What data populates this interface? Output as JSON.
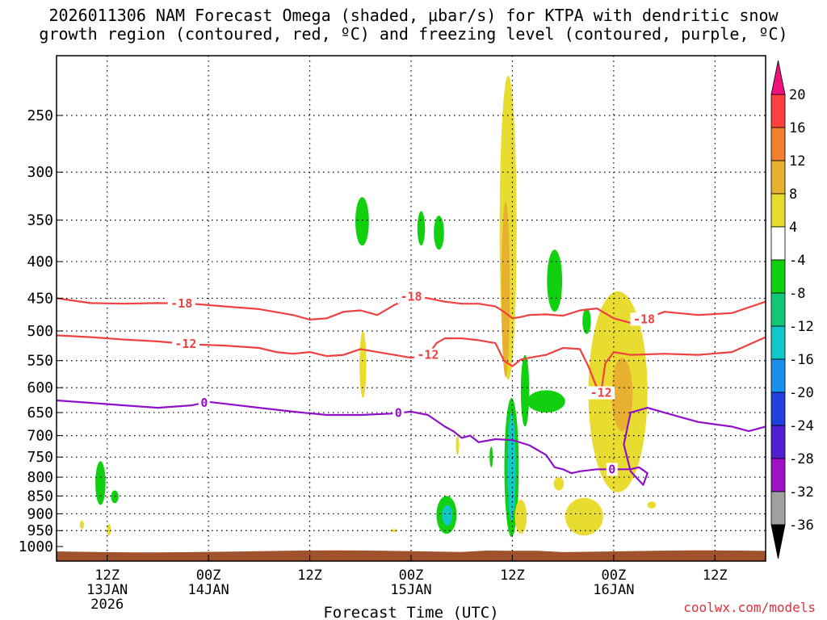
{
  "title": {
    "line1": "2026011306 NAM Forecast Omega (shaded, μbar/s) for KTPA with dendritic snow",
    "line2": "growth region (contoured, red, ºC) and freezing level (contoured, purple, ºC)"
  },
  "credit": "coolwx.com/models",
  "chart_data": {
    "type": "heatmap",
    "title": "2026011306 NAM Forecast Omega (shaded, μbar/s) for KTPA with dendritic snow growth region (contoured, red, ºC) and freezing level (contoured, purple, ºC)",
    "xlabel": "Forecast Time (UTC)",
    "ylabel": "",
    "x_unit": "forecast hour since 2026011306",
    "xlim": [
      0,
      84
    ],
    "ylim": [
      1000,
      200
    ],
    "y_ticks": [
      250,
      300,
      350,
      400,
      450,
      500,
      550,
      600,
      650,
      700,
      750,
      800,
      850,
      900,
      950,
      1000
    ],
    "x_ticks": [
      {
        "hour": 6,
        "label": "12Z",
        "sub1": "13JAN",
        "sub2": "2026"
      },
      {
        "hour": 18,
        "label": "00Z",
        "sub1": "14JAN",
        "sub2": ""
      },
      {
        "hour": 30,
        "label": "12Z",
        "sub1": "",
        "sub2": ""
      },
      {
        "hour": 42,
        "label": "00Z",
        "sub1": "15JAN",
        "sub2": ""
      },
      {
        "hour": 54,
        "label": "12Z",
        "sub1": "",
        "sub2": ""
      },
      {
        "hour": 66,
        "label": "00Z",
        "sub1": "16JAN",
        "sub2": ""
      },
      {
        "hour": 78,
        "label": "12Z",
        "sub1": "",
        "sub2": ""
      }
    ],
    "colorbar": {
      "labels": [
        "20",
        "16",
        "12",
        "8",
        "4",
        "-4",
        "-8",
        "-12",
        "-16",
        "-20",
        "-24",
        "-28",
        "-32",
        "-36"
      ],
      "bins": [
        {
          "lo": 16,
          "hi": 20,
          "color": "#ff4040"
        },
        {
          "lo": 12,
          "hi": 16,
          "color": "#f08030"
        },
        {
          "lo": 8,
          "hi": 12,
          "color": "#e8b030"
        },
        {
          "lo": 4,
          "hi": 8,
          "color": "#e8dc30"
        },
        {
          "lo": -4,
          "hi": 4,
          "color": "#ffffff"
        },
        {
          "lo": -8,
          "hi": -4,
          "color": "#10d010"
        },
        {
          "lo": -12,
          "hi": -8,
          "color": "#10c878"
        },
        {
          "lo": -16,
          "hi": -12,
          "color": "#10c8c8"
        },
        {
          "lo": -20,
          "hi": -16,
          "color": "#1890f0"
        },
        {
          "lo": -24,
          "hi": -20,
          "color": "#2040e0"
        },
        {
          "lo": -28,
          "hi": -24,
          "color": "#5020d0"
        },
        {
          "lo": -32,
          "hi": -28,
          "color": "#a010c8"
        },
        {
          "lo": -36,
          "hi": -32,
          "color": "#a0a0a0"
        }
      ],
      "top_arrow_color": "#f0107a",
      "bottom_arrow_color": "#000000"
    },
    "omega_blobs": [
      {
        "hour": 5.2,
        "p": [
          760,
          875
        ],
        "width": 1.2,
        "color": "#10d010"
      },
      {
        "hour": 6.9,
        "p": [
          835,
          870
        ],
        "width": 0.9,
        "color": "#10d010"
      },
      {
        "hour": 3.0,
        "p": [
          920,
          945
        ],
        "width": 0.5,
        "color": "#e8dc30"
      },
      {
        "hour": 6.2,
        "p": [
          930,
          965
        ],
        "width": 0.5,
        "color": "#e8dc30"
      },
      {
        "hour": 36.2,
        "p": [
          325,
          380
        ],
        "width": 1.6,
        "color": "#10d010"
      },
      {
        "hour": 36.3,
        "p": [
          500,
          620
        ],
        "width": 0.8,
        "color": "#e8dc30"
      },
      {
        "hour": 40.0,
        "p": [
          945,
          955
        ],
        "width": 0.6,
        "color": "#e8dc30"
      },
      {
        "hour": 43.2,
        "p": [
          340,
          380
        ],
        "width": 0.9,
        "color": "#10d010"
      },
      {
        "hour": 45.3,
        "p": [
          345,
          385
        ],
        "width": 1.2,
        "color": "#10d010"
      },
      {
        "hour": 46.2,
        "p": [
          850,
          960
        ],
        "width": 2.4,
        "color": "#10d010"
      },
      {
        "hour": 46.3,
        "p": [
          875,
          935
        ],
        "width": 1.2,
        "color": "#10c8c8"
      },
      {
        "hour": 47.5,
        "p": [
          700,
          745
        ],
        "width": 0.4,
        "color": "#e8dc30"
      },
      {
        "hour": 51.5,
        "p": [
          725,
          775
        ],
        "width": 0.4,
        "color": "#10d010"
      },
      {
        "hour": 53.5,
        "p": [
          220,
          585
        ],
        "width": 2.0,
        "color": "#e8dc30"
      },
      {
        "hour": 53.2,
        "p": [
          330,
          580
        ],
        "width": 1.0,
        "color": "#e8b030"
      },
      {
        "hour": 53.9,
        "p": [
          620,
          970
        ],
        "width": 1.7,
        "color": "#10d010"
      },
      {
        "hour": 53.9,
        "p": [
          650,
          920
        ],
        "width": 1.0,
        "color": "#10c8c8"
      },
      {
        "hour": 55.5,
        "p": [
          540,
          680
        ],
        "width": 1.0,
        "color": "#10d010"
      },
      {
        "hour": 55.0,
        "p": [
          860,
          960
        ],
        "width": 1.4,
        "color": "#e8dc30"
      },
      {
        "hour": 58.0,
        "p": [
          605,
          650
        ],
        "width": 4.5,
        "color": "#10d010"
      },
      {
        "hour": 59.0,
        "p": [
          385,
          470
        ],
        "width": 1.8,
        "color": "#10d010"
      },
      {
        "hour": 59.5,
        "p": [
          800,
          835
        ],
        "width": 1.2,
        "color": "#e8dc30"
      },
      {
        "hour": 62.8,
        "p": [
          465,
          505
        ],
        "width": 1.0,
        "color": "#10d010"
      },
      {
        "hour": 62.5,
        "p": [
          855,
          965
        ],
        "width": 4.5,
        "color": "#e8dc30"
      },
      {
        "hour": 66.5,
        "p": [
          440,
          840
        ],
        "width": 7.0,
        "color": "#e8dc30"
      },
      {
        "hour": 67.0,
        "p": [
          545,
          690
        ],
        "width": 2.5,
        "color": "#e8b030"
      },
      {
        "hour": 70.5,
        "p": [
          865,
          885
        ],
        "width": 1.0,
        "color": "#e8dc30"
      }
    ],
    "series": [
      {
        "name": "-18",
        "color": "#f04040",
        "x": [
          0,
          4,
          8,
          12,
          16,
          20,
          24,
          28,
          30,
          32,
          34,
          36,
          38,
          40,
          42,
          44,
          46,
          48,
          50,
          52,
          53,
          54,
          55,
          56,
          58,
          60,
          62,
          64,
          66,
          68,
          70,
          72,
          76,
          80,
          84
        ],
        "p": [
          450,
          457,
          458,
          457,
          458,
          462,
          466,
          475,
          482,
          480,
          470,
          468,
          475,
          460,
          448,
          450,
          455,
          458,
          458,
          462,
          470,
          480,
          478,
          475,
          474,
          476,
          468,
          465,
          480,
          487,
          480,
          470,
          475,
          472,
          455
        ],
        "labels": [
          {
            "text": "-18",
            "hour": 14.8
          },
          {
            "text": "-18",
            "hour": 42.0
          },
          {
            "text": "-18",
            "hour": 69.6
          }
        ]
      },
      {
        "name": "-12",
        "color": "#f04040",
        "x": [
          0,
          4,
          8,
          12,
          16,
          20,
          24,
          26,
          28,
          30,
          32,
          34,
          36,
          38,
          40,
          42,
          44,
          45,
          46,
          48,
          50,
          52,
          53,
          54,
          55,
          56,
          58,
          60,
          62,
          63,
          64,
          64.5,
          65,
          66,
          68,
          72,
          76,
          80,
          84
        ],
        "p": [
          507,
          510,
          514,
          517,
          522,
          524,
          528,
          535,
          538,
          535,
          542,
          540,
          530,
          535,
          540,
          545,
          540,
          520,
          512,
          512,
          515,
          520,
          550,
          560,
          548,
          545,
          540,
          528,
          530,
          560,
          600,
          610,
          555,
          535,
          540,
          538,
          540,
          535,
          510
        ],
        "labels": [
          {
            "text": "-12",
            "hour": 15.3
          },
          {
            "text": "-12",
            "hour": 44.0
          },
          {
            "text": "-12",
            "hour": 64.5
          }
        ]
      },
      {
        "name": "0",
        "color": "#9010c8",
        "x": [
          0,
          4,
          8,
          12,
          16,
          18,
          20,
          24,
          28,
          32,
          36,
          40,
          42,
          44,
          46,
          47,
          48,
          49,
          50,
          52,
          54,
          56,
          58,
          59,
          60,
          61,
          62,
          64,
          66,
          68,
          69,
          70,
          69.5,
          68,
          67.2,
          68,
          70,
          72,
          74,
          76,
          78,
          80,
          82,
          84
        ],
        "p": [
          625,
          630,
          635,
          640,
          635,
          628,
          632,
          640,
          648,
          655,
          655,
          652,
          648,
          655,
          680,
          690,
          705,
          700,
          715,
          708,
          710,
          722,
          745,
          775,
          780,
          790,
          785,
          780,
          780,
          780,
          775,
          790,
          820,
          785,
          720,
          650,
          640,
          650,
          660,
          670,
          675,
          680,
          690,
          680
        ],
        "labels": [
          {
            "text": "0",
            "hour": 17.5
          },
          {
            "text": "0",
            "hour": 40.5
          },
          {
            "text": "0",
            "hour": 65.8
          }
        ]
      }
    ],
    "terrain_color": "#a0522d"
  }
}
